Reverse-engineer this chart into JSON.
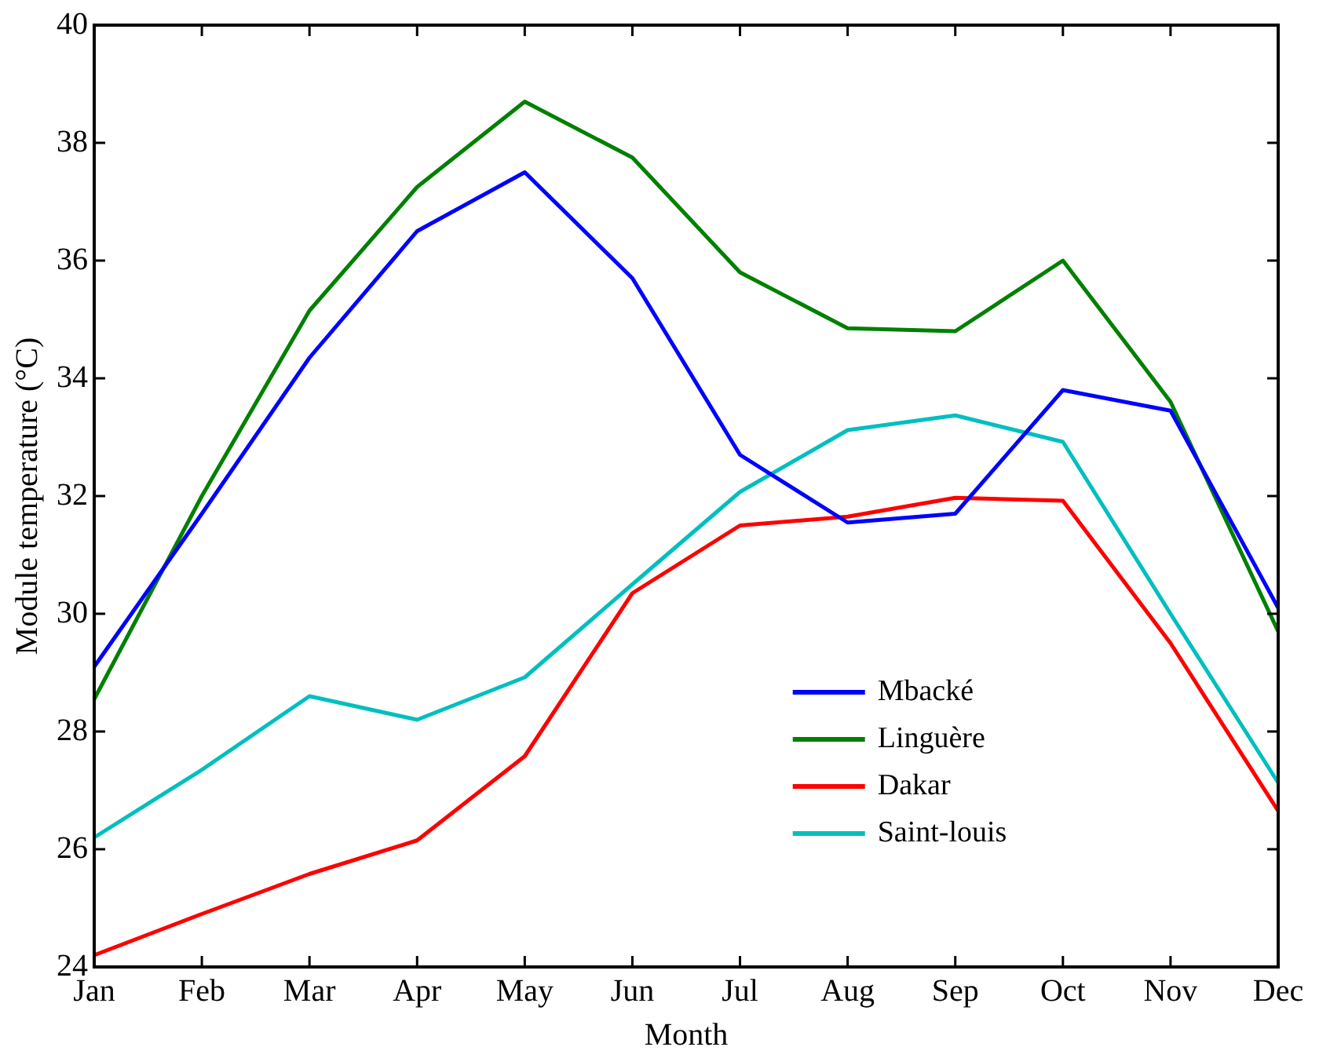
{
  "chart_data": {
    "type": "line",
    "xlabel": "Month",
    "ylabel": "Module temperature (°C)",
    "categories": [
      "Jan",
      "Feb",
      "Mar",
      "Apr",
      "May",
      "Jun",
      "Jul",
      "Aug",
      "Sep",
      "Oct",
      "Nov",
      "Dec"
    ],
    "ylim": [
      24,
      40
    ],
    "yticks": [
      24,
      26,
      28,
      30,
      32,
      34,
      36,
      38,
      40
    ],
    "grid": false,
    "legend": "bottom right",
    "marker": "none",
    "line_style": "solid",
    "series": [
      {
        "name": "Mbacké",
        "color": "#0000ff",
        "values": [
          29.1,
          31.7,
          34.35,
          36.5,
          37.5,
          35.7,
          32.7,
          31.55,
          31.7,
          33.8,
          33.45,
          30.1
        ]
      },
      {
        "name": "Linguère",
        "color": "#008000",
        "values": [
          28.55,
          32.0,
          35.15,
          37.25,
          38.7,
          37.75,
          35.8,
          34.85,
          34.8,
          36.0,
          33.6,
          29.7
        ]
      },
      {
        "name": "Dakar",
        "color": "#ff0000",
        "values": [
          24.2,
          24.9,
          25.58,
          26.15,
          27.58,
          30.35,
          31.5,
          31.65,
          31.97,
          31.92,
          29.5,
          26.65
        ]
      },
      {
        "name": "Saint-louis",
        "color": "#00bfbf",
        "values": [
          26.2,
          27.35,
          28.6,
          28.2,
          28.92,
          30.5,
          32.07,
          33.12,
          33.37,
          32.92,
          30.0,
          27.13
        ]
      }
    ]
  }
}
